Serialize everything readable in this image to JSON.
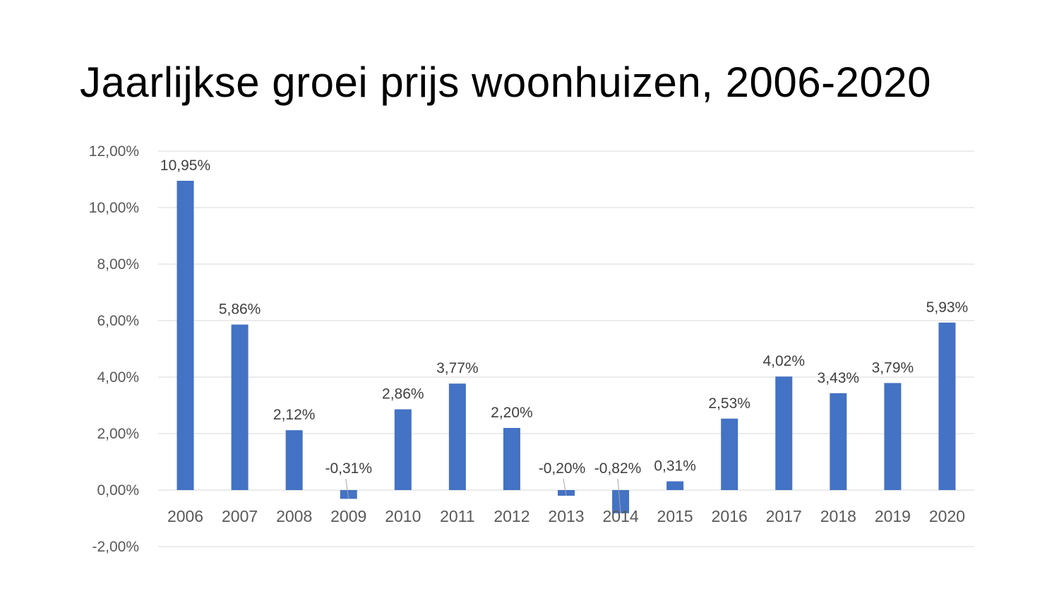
{
  "title": "Jaarlijkse groei prijs woonhuizen, 2006-2020",
  "chart_data": {
    "type": "bar",
    "title": "Jaarlijkse groei prijs woonhuizen, 2006-2020",
    "categories": [
      "2006",
      "2007",
      "2008",
      "2009",
      "2010",
      "2011",
      "2012",
      "2013",
      "2014",
      "2015",
      "2016",
      "2017",
      "2018",
      "2019",
      "2020"
    ],
    "values": [
      10.95,
      5.86,
      2.12,
      -0.31,
      2.86,
      3.77,
      2.2,
      -0.2,
      -0.82,
      0.31,
      2.53,
      4.02,
      3.43,
      3.79,
      5.93
    ],
    "data_labels": [
      "10,95%",
      "5,86%",
      "2,12%",
      "-0,31%",
      "2,86%",
      "3,77%",
      "2,20%",
      "-0,20%",
      "-0,82%",
      "0,31%",
      "2,53%",
      "4,02%",
      "3,43%",
      "3,79%",
      "5,93%"
    ],
    "y_ticks": [
      12,
      10,
      8,
      6,
      4,
      2,
      0,
      -2
    ],
    "y_tick_labels": [
      "12,00%",
      "10,00%",
      "8,00%",
      "6,00%",
      "4,00%",
      "2,00%",
      "0,00%",
      "-2,00%"
    ],
    "ylim": [
      -2,
      12
    ],
    "xlabel": "",
    "ylabel": "",
    "grid": true,
    "legend": "none",
    "bar_color": "#4472C4",
    "grid_color": "#D9D9D9"
  }
}
